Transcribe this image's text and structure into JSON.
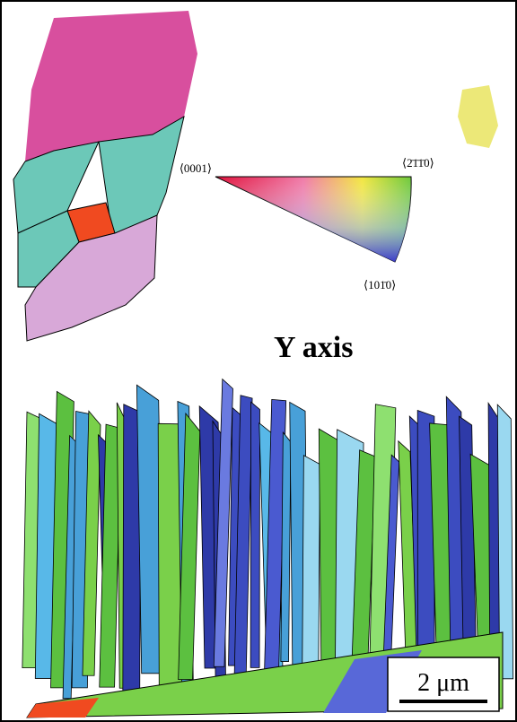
{
  "legend": {
    "corner_0001": "⟨0001⟩",
    "corner_2110": "⟨2̄1̄1̄0⟩",
    "corner_1010": "⟨101̄0⟩"
  },
  "axis_label": "Y axis",
  "scale_bar": "2 μm"
}
